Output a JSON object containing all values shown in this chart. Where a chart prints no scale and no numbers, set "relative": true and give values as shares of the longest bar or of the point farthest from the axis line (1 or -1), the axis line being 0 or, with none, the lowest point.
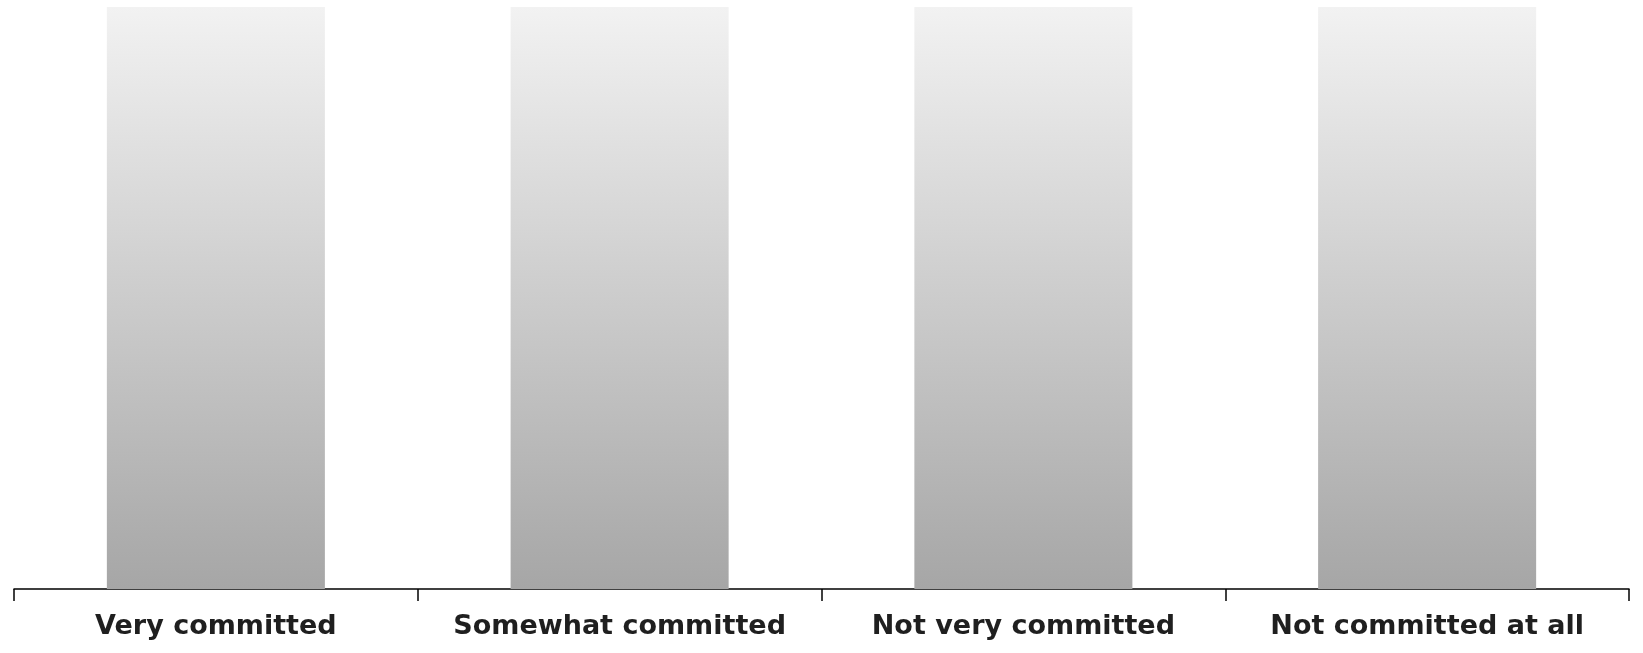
{
  "chart_data": {
    "type": "bar",
    "relative": true,
    "categories": [
      "Very committed",
      "Somewhat committed",
      "Not very committed",
      "Not committed at all"
    ],
    "values": [
      1,
      1,
      1,
      1
    ],
    "color": "#a6a6a6"
  }
}
